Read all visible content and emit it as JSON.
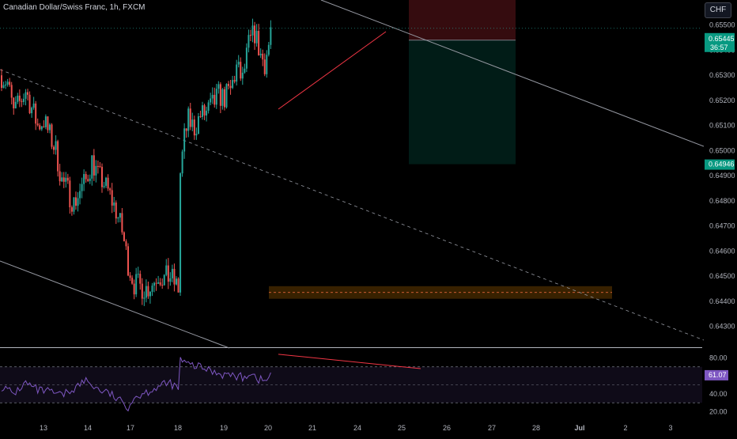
{
  "title": "Canadian Dollar/Swiss Franc, 1h, FXCM",
  "currency_button": "CHF",
  "colors": {
    "up": "#26a69a",
    "down": "#ef5350",
    "rsi": "#7e57c2",
    "background": "#000000"
  },
  "chart_data": [
    {
      "type": "candlestick",
      "title": "Canadian Dollar/Swiss Franc, 1h, FXCM",
      "x_ticks": [
        "13",
        "14",
        "17",
        "18",
        "19",
        "20",
        "21",
        "24",
        "25",
        "26",
        "27",
        "28",
        "Jul",
        "2",
        "3"
      ],
      "y_ticks": [
        "0.65500",
        "0.65400",
        "0.65300",
        "0.65200",
        "0.65100",
        "0.65000",
        "0.64900",
        "0.64800",
        "0.64700",
        "0.64600",
        "0.64500",
        "0.64400",
        "0.64300"
      ],
      "ylim": [
        0.6422,
        0.656
      ],
      "price_path": [
        [
          0,
          0.653
        ],
        [
          3,
          0.6527
        ],
        [
          6,
          0.6515
        ],
        [
          9,
          0.6519
        ],
        [
          12,
          0.6524
        ],
        [
          15,
          0.6517
        ],
        [
          18,
          0.651
        ],
        [
          21,
          0.6512
        ],
        [
          24,
          0.6506
        ],
        [
          27,
          0.65
        ],
        [
          30,
          0.6488
        ],
        [
          33,
          0.6484
        ],
        [
          36,
          0.6479
        ],
        [
          39,
          0.6484
        ],
        [
          42,
          0.6488
        ],
        [
          45,
          0.6496
        ],
        [
          48,
          0.649
        ],
        [
          51,
          0.6487
        ],
        [
          54,
          0.6482
        ],
        [
          57,
          0.6476
        ],
        [
          60,
          0.6468
        ],
        [
          63,
          0.6455
        ],
        [
          66,
          0.6447
        ],
        [
          69,
          0.6446
        ],
        [
          72,
          0.6445
        ],
        [
          75,
          0.6447
        ],
        [
          78,
          0.6451
        ],
        [
          81,
          0.6449
        ],
        [
          84,
          0.645
        ],
        [
          87,
          0.6446
        ],
        [
          88,
          0.6445
        ],
        [
          89,
          0.6491
        ],
        [
          91,
          0.6505
        ],
        [
          93,
          0.6512
        ],
        [
          96,
          0.6509
        ],
        [
          99,
          0.6514
        ],
        [
          102,
          0.6515
        ],
        [
          105,
          0.6518
        ],
        [
          108,
          0.6522
        ],
        [
          111,
          0.6521
        ],
        [
          114,
          0.6524
        ],
        [
          117,
          0.6533
        ],
        [
          120,
          0.6528
        ],
        [
          123,
          0.6542
        ],
        [
          126,
          0.6547
        ],
        [
          129,
          0.6538
        ],
        [
          131,
          0.6535
        ],
        [
          133,
          0.6542
        ],
        [
          134,
          0.6548
        ]
      ],
      "last_price": {
        "label": "0.65445",
        "countdown": "36:57"
      },
      "target_price": {
        "label": "0.64946"
      },
      "position": {
        "entry": 0.6544,
        "stop": 0.656,
        "target": 0.64946
      },
      "support_zone": [
        0.6441,
        0.6446
      ],
      "trendlines": "descending channel, rising wedge top",
      "rsi": {
        "y_ticks": [
          "80.00",
          "40.00",
          "20.00"
        ],
        "ylim": [
          10,
          90
        ],
        "bands": [
          30,
          70
        ],
        "last_value": "61.07",
        "path": [
          [
            0,
            48
          ],
          [
            6,
            40
          ],
          [
            12,
            52
          ],
          [
            18,
            44
          ],
          [
            24,
            42
          ],
          [
            30,
            38
          ],
          [
            36,
            46
          ],
          [
            42,
            55
          ],
          [
            48,
            45
          ],
          [
            54,
            40
          ],
          [
            60,
            30
          ],
          [
            63,
            26
          ],
          [
            66,
            36
          ],
          [
            72,
            42
          ],
          [
            78,
            48
          ],
          [
            84,
            52
          ],
          [
            88,
            45
          ],
          [
            89,
            78
          ],
          [
            92,
            73
          ],
          [
            98,
            70
          ],
          [
            104,
            66
          ],
          [
            110,
            62
          ],
          [
            116,
            60
          ],
          [
            120,
            58
          ],
          [
            124,
            64
          ],
          [
            128,
            56
          ],
          [
            131,
            54
          ],
          [
            134,
            61
          ]
        ]
      }
    }
  ]
}
